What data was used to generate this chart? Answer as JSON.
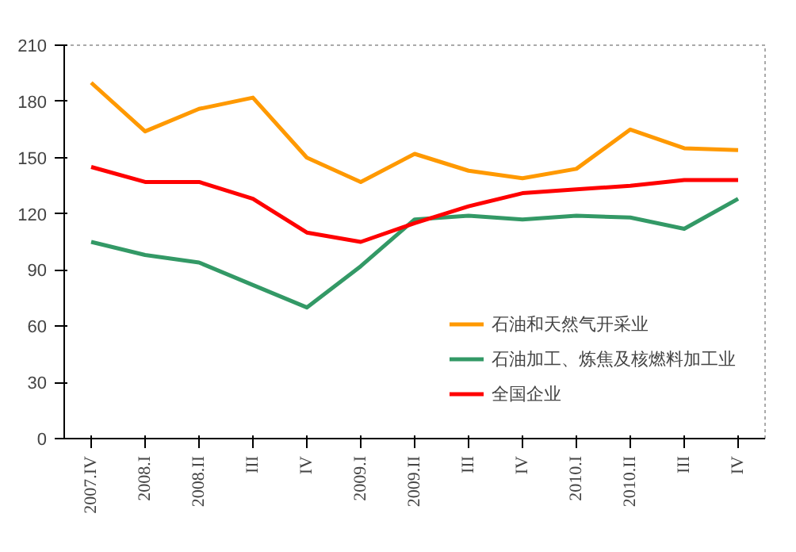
{
  "chart_data": {
    "type": "line",
    "categories": [
      "2007.IV",
      "2008.I",
      "2008.II",
      "III",
      "IV",
      "2009.I",
      "2009.II",
      "III",
      "IV",
      "2010.I",
      "2010.II",
      "III",
      "IV"
    ],
    "series": [
      {
        "name": "石油和天然气开采业",
        "color": "#ff9900",
        "values": [
          190,
          164,
          176,
          182,
          150,
          137,
          152,
          143,
          139,
          144,
          165,
          155,
          154
        ]
      },
      {
        "name": "石油加工、炼焦及核燃料加工业",
        "color": "#339966",
        "values": [
          105,
          98,
          94,
          82,
          70,
          92,
          117,
          119,
          117,
          119,
          118,
          112,
          128
        ]
      },
      {
        "name": "全国企业",
        "color": "#ff0000",
        "values": [
          145,
          137,
          137,
          128,
          110,
          105,
          115,
          124,
          131,
          133,
          135,
          138,
          138
        ]
      }
    ],
    "ylim": [
      0,
      210
    ],
    "yticks": [
      0,
      30,
      60,
      90,
      120,
      150,
      180,
      210
    ],
    "grid": false,
    "legend": "bottom right",
    "marker": "none",
    "line_style": "solid"
  }
}
